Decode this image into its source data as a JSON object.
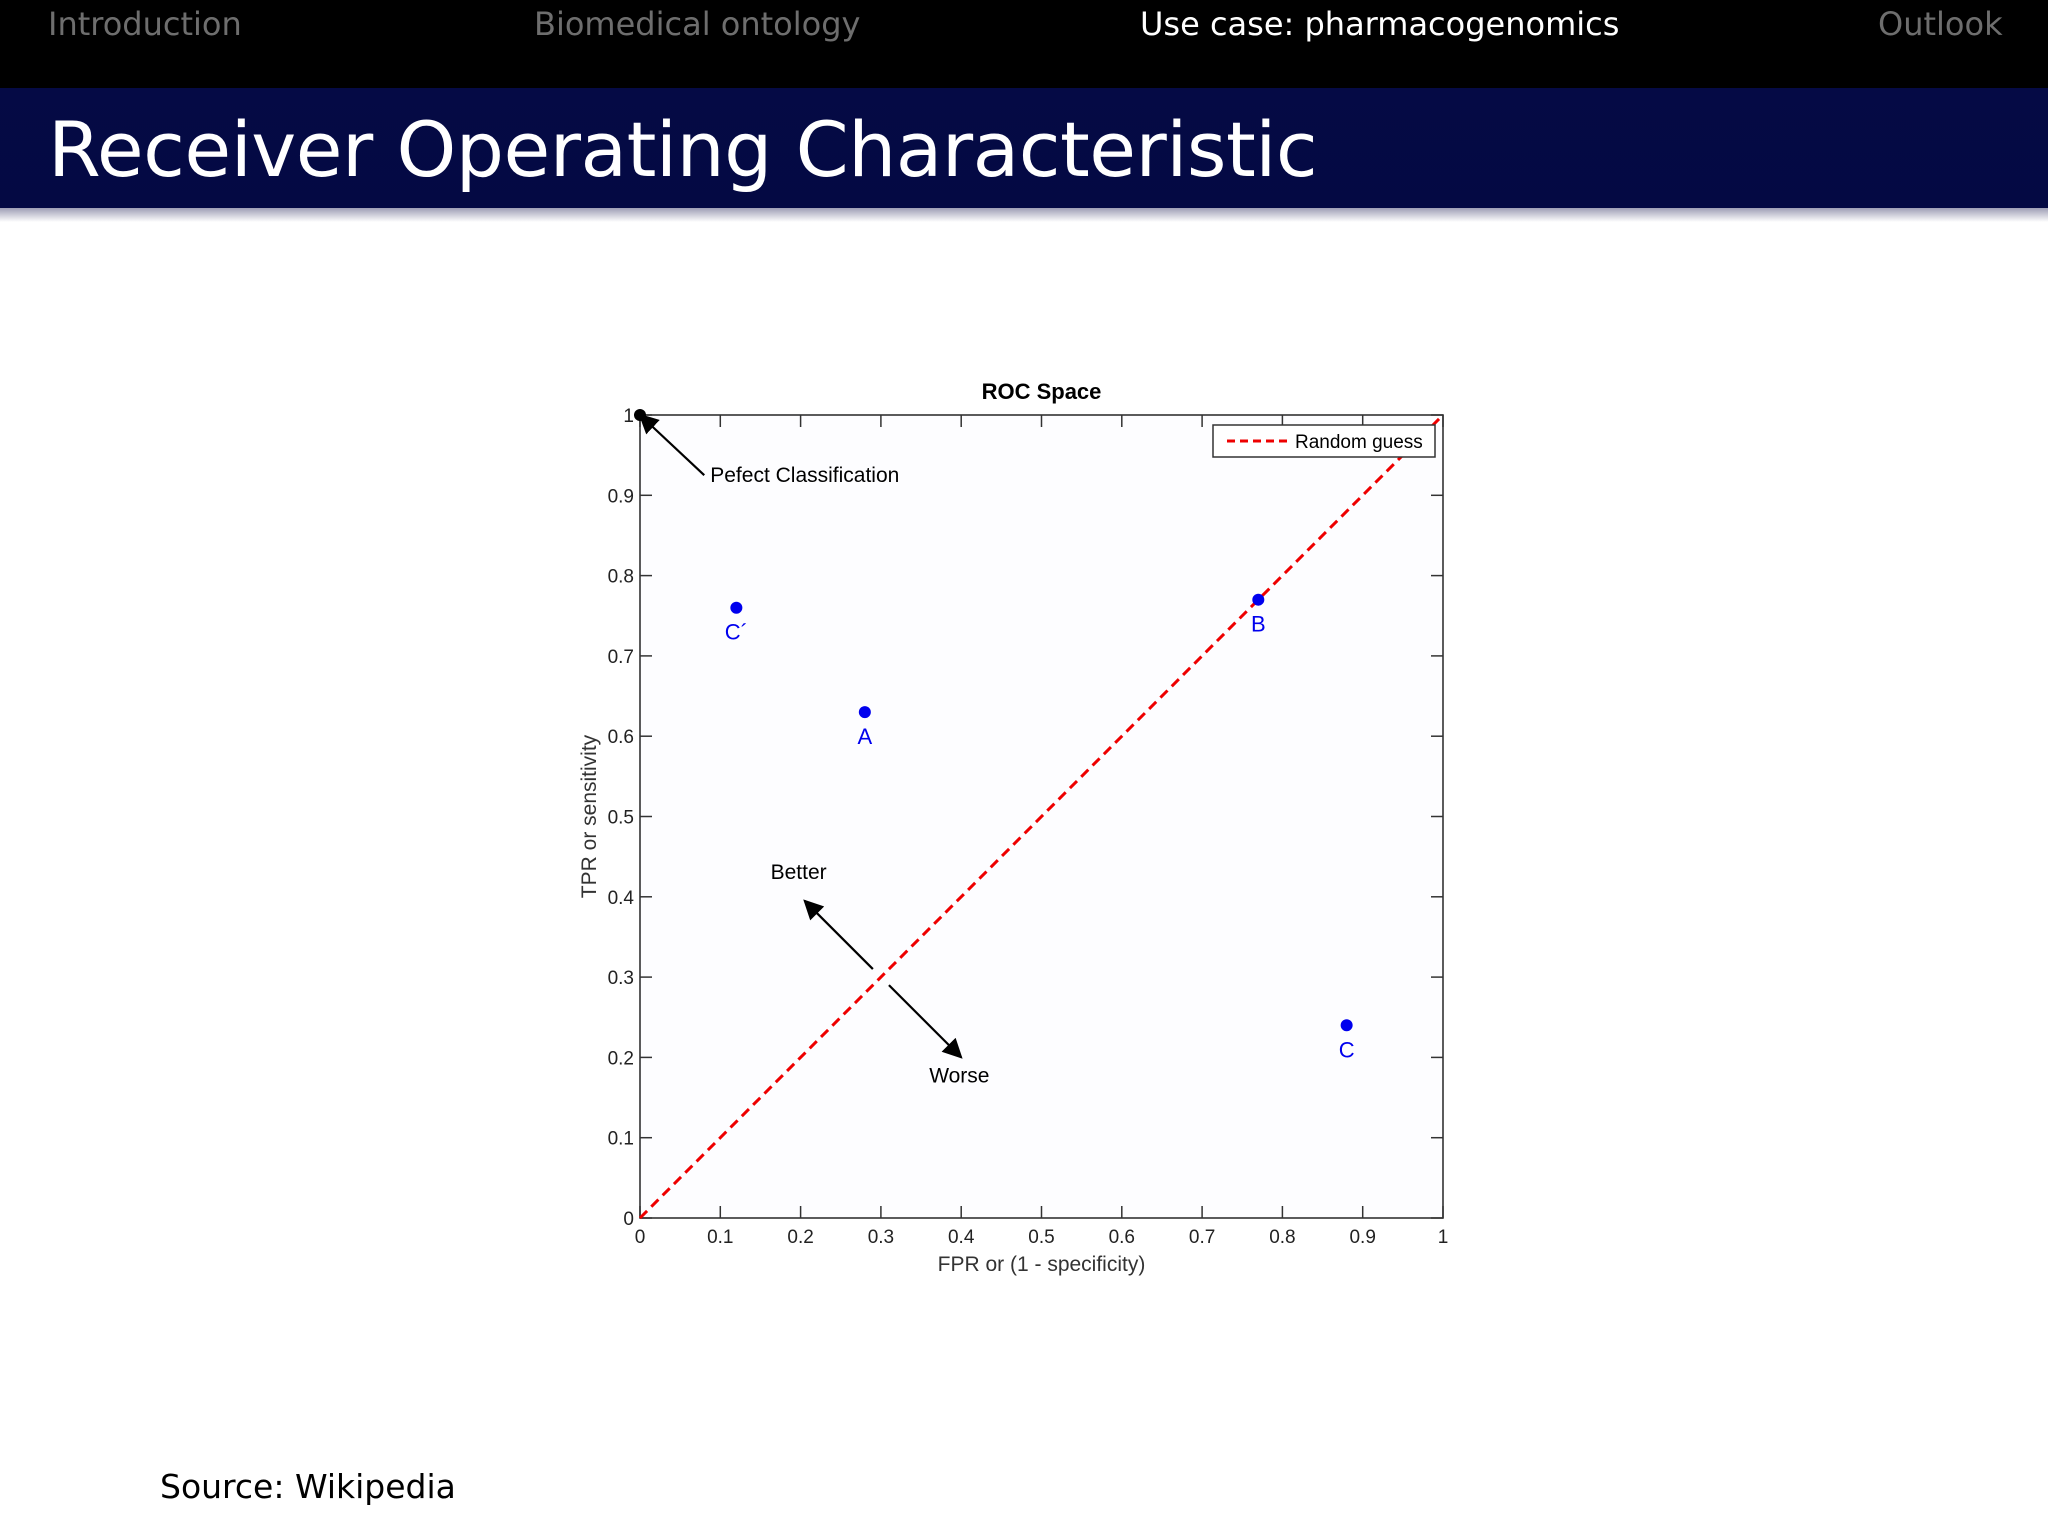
{
  "nav": {
    "items": [
      {
        "label": "Introduction"
      },
      {
        "label": "Biomedical ontology"
      },
      {
        "label": "Use case:  pharmacogenomics"
      },
      {
        "label": "Outlook"
      }
    ],
    "active_index": 2
  },
  "slide": {
    "title": "Receiver Operating Characteristic",
    "source": "Source:  Wikipedia"
  },
  "colors": {
    "nav_bg": "#000000",
    "title_bg": "#040943",
    "point_color": "#0000ee",
    "diagonal_color": "#ee0000",
    "perfect_point_color": "#000000"
  },
  "chart_data": {
    "type": "scatter",
    "title": "ROC Space",
    "xlabel": "FPR or (1 - specificity)",
    "ylabel": "TPR or sensitivity",
    "xlim": [
      0,
      1
    ],
    "ylim": [
      0,
      1
    ],
    "xticks": [
      "0",
      "0.1",
      "0.2",
      "0.3",
      "0.4",
      "0.5",
      "0.6",
      "0.7",
      "0.8",
      "0.9",
      "1"
    ],
    "yticks": [
      "0",
      "0.1",
      "0.2",
      "0.3",
      "0.4",
      "0.5",
      "0.6",
      "0.7",
      "0.8",
      "0.9",
      "1"
    ],
    "grid": false,
    "legend": {
      "position": "top-right",
      "entries": [
        "Random guess"
      ]
    },
    "series": [
      {
        "name": "Random guess",
        "style": "dashed-line",
        "x": [
          0,
          1
        ],
        "y": [
          0,
          1
        ]
      }
    ],
    "points": [
      {
        "label": "",
        "x": 0.0,
        "y": 1.0
      },
      {
        "label": "C´",
        "x": 0.12,
        "y": 0.76
      },
      {
        "label": "A",
        "x": 0.28,
        "y": 0.63
      },
      {
        "label": "B",
        "x": 0.77,
        "y": 0.77
      },
      {
        "label": "C",
        "x": 0.88,
        "y": 0.24
      }
    ],
    "annotations": [
      {
        "text": "Pefect Classification",
        "x": 0.085,
        "y": 0.925,
        "arrow_to": [
          0.0,
          1.0
        ],
        "arrow_from": [
          0.08,
          0.925
        ]
      },
      {
        "text": "Better",
        "x": 0.2,
        "y": 0.41,
        "arrow_to": [
          0.205,
          0.395
        ],
        "arrow_from": [
          0.29,
          0.31
        ]
      },
      {
        "text": "Worse",
        "x": 0.4,
        "y": 0.17,
        "arrow_to": [
          0.4,
          0.2
        ],
        "arrow_from": [
          0.31,
          0.29
        ]
      }
    ]
  }
}
